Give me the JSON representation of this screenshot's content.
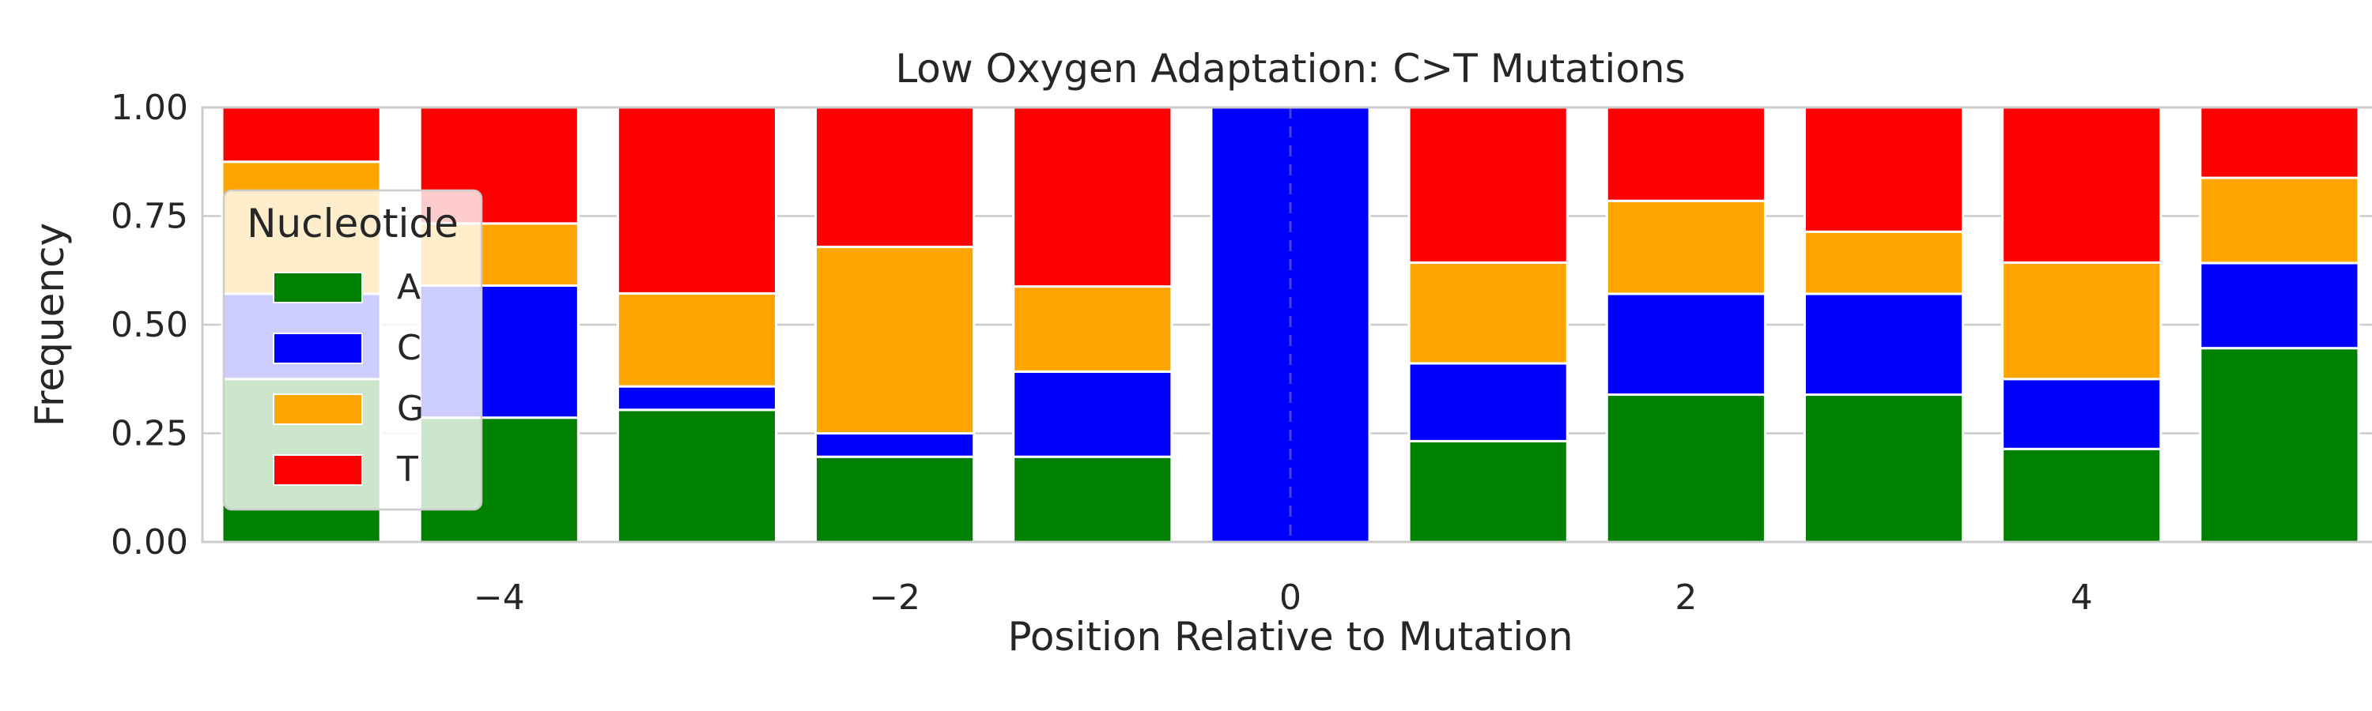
{
  "chart_data": {
    "type": "bar",
    "stacked": true,
    "title": "Low Oxygen Adaptation: C>T Mutations",
    "xlabel": "Position Relative to Mutation",
    "ylabel": "Frequency",
    "xlim": [
      -5.5,
      5.5
    ],
    "ylim": [
      0,
      1
    ],
    "x": [
      -5,
      -4,
      -3,
      -2,
      -1,
      0,
      1,
      2,
      3,
      4,
      5
    ],
    "x_ticks": [
      -4,
      -2,
      0,
      2,
      4
    ],
    "x_tick_labels": [
      "−4",
      "−2",
      "0",
      "2",
      "4"
    ],
    "y_ticks": [
      0,
      0.25,
      0.5,
      0.75,
      1.0
    ],
    "y_tick_labels": [
      "0.00",
      "0.25",
      "0.50",
      "0.75",
      "1.00"
    ],
    "grid": "horizontal",
    "reference_line_x": 0,
    "series": [
      {
        "name": "A",
        "color": "#008000",
        "values": [
          0.375,
          0.286,
          0.304,
          0.196,
          0.196,
          0.0,
          0.232,
          0.339,
          0.339,
          0.214,
          0.446
        ]
      },
      {
        "name": "C",
        "color": "#0000ff",
        "values": [
          0.196,
          0.304,
          0.054,
          0.054,
          0.196,
          1.0,
          0.179,
          0.232,
          0.232,
          0.161,
          0.196
        ]
      },
      {
        "name": "G",
        "color": "#ffa500",
        "values": [
          0.304,
          0.143,
          0.214,
          0.429,
          0.196,
          0.0,
          0.232,
          0.214,
          0.143,
          0.268,
          0.196
        ]
      },
      {
        "name": "T",
        "color": "#ff0000",
        "values": [
          0.125,
          0.267,
          0.428,
          0.321,
          0.412,
          0.0,
          0.357,
          0.215,
          0.286,
          0.357,
          0.162
        ]
      }
    ],
    "legend": {
      "title": "Nucleotide",
      "placement": "center-left"
    }
  }
}
